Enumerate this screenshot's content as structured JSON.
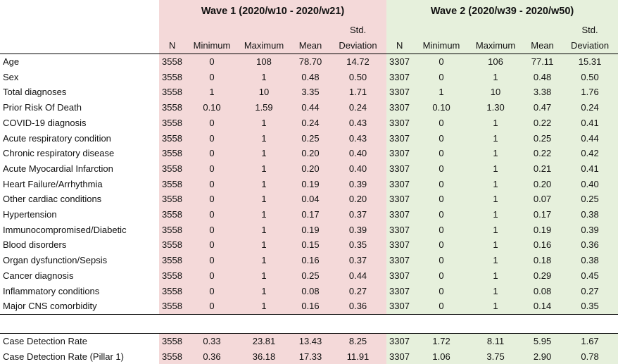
{
  "waves": [
    {
      "title": "Wave 1 (2020/w10 - 2020/w21)"
    },
    {
      "title": "Wave 2 (2020/w39 - 2020/w50)"
    }
  ],
  "columns": {
    "n": "N",
    "min": "Minimum",
    "max": "Maximum",
    "mean": "Mean",
    "std_top": "Std.",
    "std_bottom": "Deviation"
  },
  "rows": [
    {
      "label": "Age",
      "w1": [
        "3558",
        "0",
        "108",
        "78.70",
        "14.72"
      ],
      "w2": [
        "3307",
        "0",
        "106",
        "77.11",
        "15.31"
      ]
    },
    {
      "label": "Sex",
      "w1": [
        "3558",
        "0",
        "1",
        "0.48",
        "0.50"
      ],
      "w2": [
        "3307",
        "0",
        "1",
        "0.48",
        "0.50"
      ]
    },
    {
      "label": "Total diagnoses",
      "w1": [
        "3558",
        "1",
        "10",
        "3.35",
        "1.71"
      ],
      "w2": [
        "3307",
        "1",
        "10",
        "3.38",
        "1.76"
      ]
    },
    {
      "label": "Prior Risk Of Death",
      "w1": [
        "3558",
        "0.10",
        "1.59",
        "0.44",
        "0.24"
      ],
      "w2": [
        "3307",
        "0.10",
        "1.30",
        "0.47",
        "0.24"
      ]
    },
    {
      "label": "COVID-19 diagnosis",
      "w1": [
        "3558",
        "0",
        "1",
        "0.24",
        "0.43"
      ],
      "w2": [
        "3307",
        "0",
        "1",
        "0.22",
        "0.41"
      ]
    },
    {
      "label": "Acute respiratory condition",
      "w1": [
        "3558",
        "0",
        "1",
        "0.25",
        "0.43"
      ],
      "w2": [
        "3307",
        "0",
        "1",
        "0.25",
        "0.44"
      ]
    },
    {
      "label": "Chronic respiratory disease",
      "w1": [
        "3558",
        "0",
        "1",
        "0.20",
        "0.40"
      ],
      "w2": [
        "3307",
        "0",
        "1",
        "0.22",
        "0.42"
      ]
    },
    {
      "label": "Acute Myocardial Infarction",
      "w1": [
        "3558",
        "0",
        "1",
        "0.20",
        "0.40"
      ],
      "w2": [
        "3307",
        "0",
        "1",
        "0.21",
        "0.41"
      ]
    },
    {
      "label": "Heart Failure/Arrhythmia",
      "w1": [
        "3558",
        "0",
        "1",
        "0.19",
        "0.39"
      ],
      "w2": [
        "3307",
        "0",
        "1",
        "0.20",
        "0.40"
      ]
    },
    {
      "label": "Other cardiac conditions",
      "w1": [
        "3558",
        "0",
        "1",
        "0.04",
        "0.20"
      ],
      "w2": [
        "3307",
        "0",
        "1",
        "0.07",
        "0.25"
      ]
    },
    {
      "label": "Hypertension",
      "w1": [
        "3558",
        "0",
        "1",
        "0.17",
        "0.37"
      ],
      "w2": [
        "3307",
        "0",
        "1",
        "0.17",
        "0.38"
      ]
    },
    {
      "label": "Immunocompromised/Diabetic",
      "w1": [
        "3558",
        "0",
        "1",
        "0.19",
        "0.39"
      ],
      "w2": [
        "3307",
        "0",
        "1",
        "0.19",
        "0.39"
      ]
    },
    {
      "label": "Blood disorders",
      "w1": [
        "3558",
        "0",
        "1",
        "0.15",
        "0.35"
      ],
      "w2": [
        "3307",
        "0",
        "1",
        "0.16",
        "0.36"
      ]
    },
    {
      "label": "Organ dysfunction/Sepsis",
      "w1": [
        "3558",
        "0",
        "1",
        "0.16",
        "0.37"
      ],
      "w2": [
        "3307",
        "0",
        "1",
        "0.18",
        "0.38"
      ]
    },
    {
      "label": "Cancer diagnosis",
      "w1": [
        "3558",
        "0",
        "1",
        "0.25",
        "0.44"
      ],
      "w2": [
        "3307",
        "0",
        "1",
        "0.29",
        "0.45"
      ]
    },
    {
      "label": "Inflammatory conditions",
      "w1": [
        "3558",
        "0",
        "1",
        "0.08",
        "0.27"
      ],
      "w2": [
        "3307",
        "0",
        "1",
        "0.08",
        "0.27"
      ]
    },
    {
      "label": "Major CNS comorbidity",
      "w1": [
        "3558",
        "0",
        "1",
        "0.16",
        "0.36"
      ],
      "w2": [
        "3307",
        "0",
        "1",
        "0.14",
        "0.35"
      ]
    }
  ],
  "extra_rows": [
    {
      "label": "Case Detection Rate",
      "w1": [
        "3558",
        "0.33",
        "23.81",
        "13.43",
        "8.25"
      ],
      "w2": [
        "3307",
        "1.72",
        "8.11",
        "5.95",
        "1.67"
      ]
    },
    {
      "label": "Case Detection Rate (Pillar 1)",
      "w1": [
        "3558",
        "0.36",
        "36.18",
        "17.33",
        "11.91"
      ],
      "w2": [
        "3307",
        "1.06",
        "3.75",
        "2.90",
        "0.78"
      ]
    }
  ],
  "colors": {
    "wave1_bg": "#f4d9d9",
    "wave2_bg": "#e6f0dc"
  }
}
